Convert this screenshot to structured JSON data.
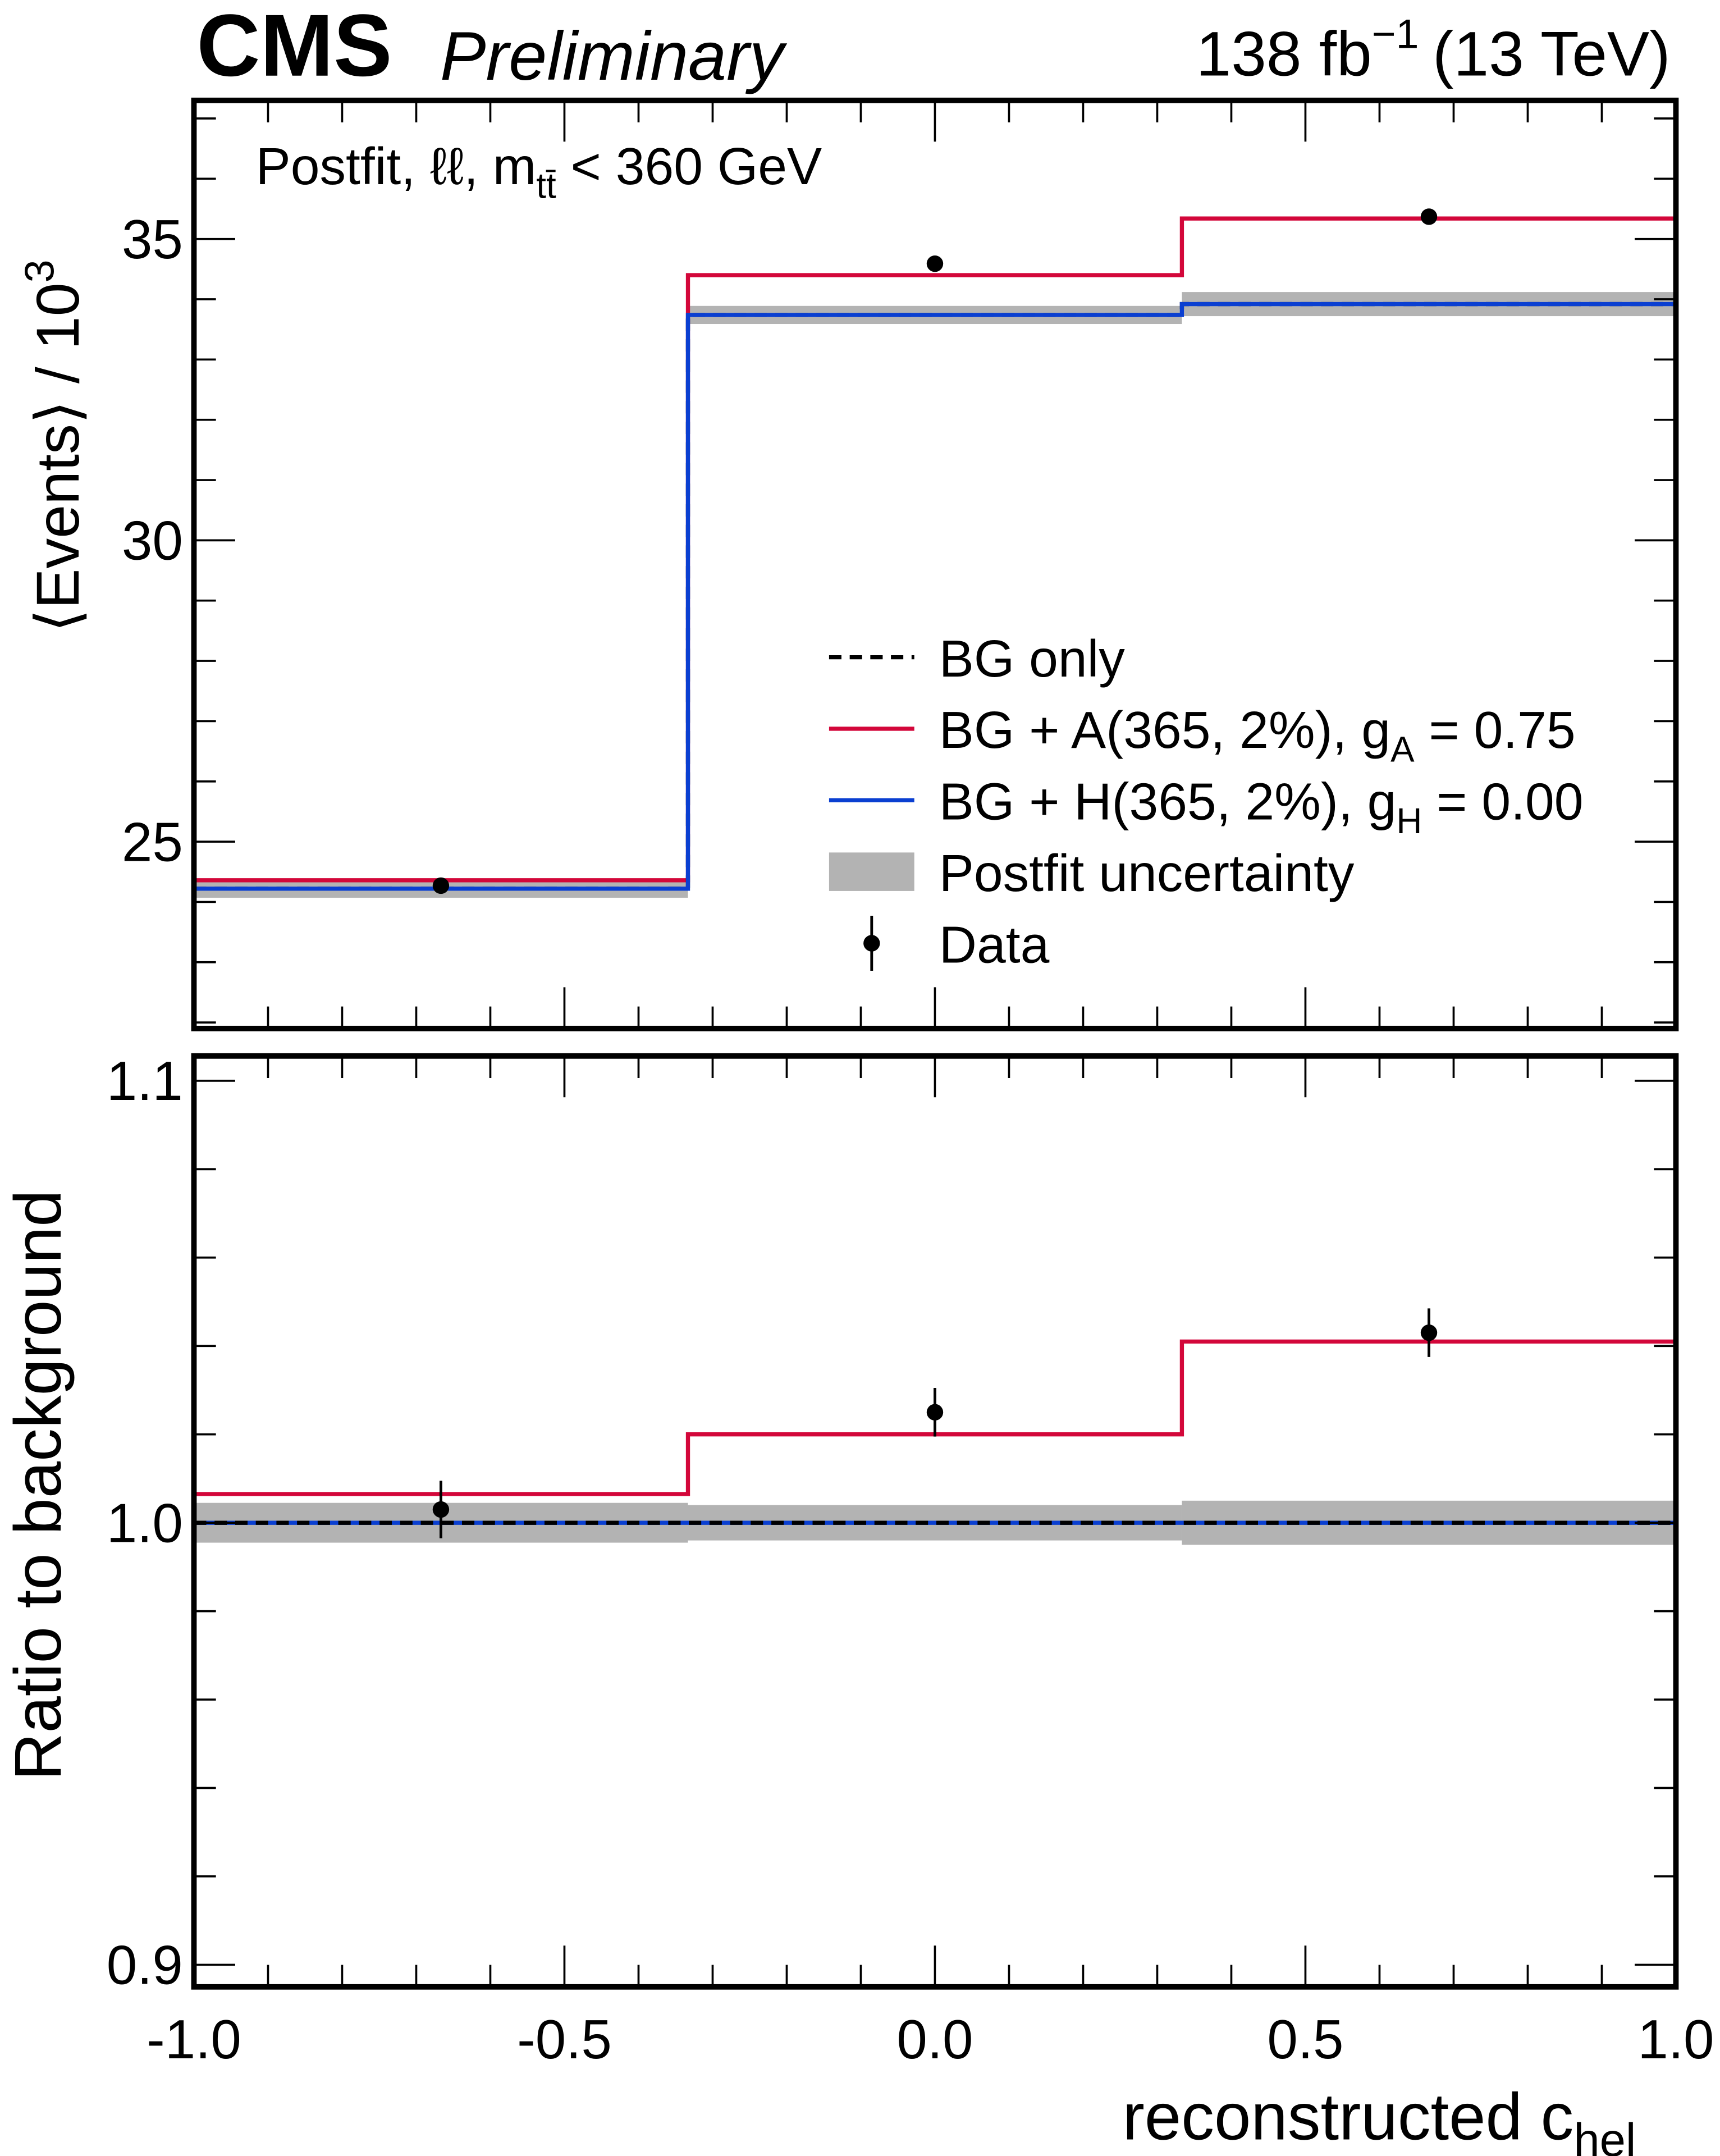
{
  "header": {
    "experiment": "CMS",
    "status": "Preliminary",
    "lumi": "138 fb",
    "lumi_exp": "−1",
    "energy": "(13 TeV)"
  },
  "chart_data": [
    {
      "type": "line",
      "subtype": "step-histogram",
      "annotation": {
        "pre": "Postfit, ℓℓ, m",
        "sub": "tt̄",
        "post": " < 360 GeV"
      },
      "ylabel": "⟨Events⟩ / 10",
      "ylabel_exp": "3",
      "ylim": [
        21.9,
        37.3
      ],
      "xlim": [
        -1.0,
        1.0
      ],
      "yticks": [
        25,
        30,
        35
      ],
      "ytick_labels": [
        "25",
        "30",
        "35"
      ],
      "bin_edges": [
        -1.0,
        -0.3333,
        0.3333,
        1.0
      ],
      "series": [
        {
          "name": "BG only",
          "style": "dashed",
          "color": "#000000",
          "values": [
            24.22,
            33.74,
            33.92
          ]
        },
        {
          "name": "BG + A(365, 2%), g",
          "sub": "A",
          "suffix": " = 0.75",
          "color": "#d3073a",
          "values": [
            24.36,
            34.4,
            35.34
          ]
        },
        {
          "name": "BG + H(365, 2%), g",
          "sub": "H",
          "suffix": " = 0.00",
          "color": "#0a3fd1",
          "values": [
            24.22,
            33.74,
            33.92
          ]
        }
      ],
      "uncertainty": {
        "name": "Postfit uncertainty",
        "color": "#b3b3b3",
        "half_width": [
          0.15,
          0.15,
          0.2
        ]
      },
      "data": {
        "name": "Data",
        "x": [
          -0.6667,
          0.0,
          0.6667
        ],
        "y": [
          24.27,
          34.59,
          35.37
        ],
        "err": [
          0.1,
          0.12,
          0.12
        ]
      },
      "legend_position": "center-right"
    },
    {
      "type": "line",
      "subtype": "ratio",
      "ylabel": "Ratio to background",
      "xlabel": "reconstructed c",
      "xlabel_sub": "hel",
      "ylim": [
        0.895,
        1.1056
      ],
      "xlim": [
        -1.0,
        1.0
      ],
      "yticks": [
        0.9,
        1.0,
        1.1
      ],
      "ytick_labels": [
        "0.9",
        "1.0",
        "1.1"
      ],
      "xticks": [
        -1.0,
        -0.5,
        0.0,
        0.5,
        1.0
      ],
      "xtick_labels": [
        "-1.0",
        "-0.5",
        "0.0",
        "0.5",
        "1.0"
      ],
      "bin_edges": [
        -1.0,
        -0.3333,
        0.3333,
        1.0
      ],
      "series": [
        {
          "name": "BG only",
          "style": "dashed",
          "color": "#000000",
          "values": [
            1.0,
            1.0,
            1.0
          ]
        },
        {
          "name": "BG + A",
          "color": "#d3073a",
          "values": [
            1.0065,
            1.02,
            1.041
          ]
        },
        {
          "name": "BG + H",
          "color": "#0a3fd1",
          "values": [
            1.0,
            1.0,
            1.0
          ]
        }
      ],
      "uncertainty": {
        "color": "#b3b3b3",
        "half_width": [
          0.0045,
          0.004,
          0.005
        ]
      },
      "data": {
        "x": [
          -0.6667,
          0.0,
          0.6667
        ],
        "y": [
          1.003,
          1.025,
          1.043
        ],
        "err": [
          0.0065,
          0.0055,
          0.0055
        ]
      }
    }
  ]
}
